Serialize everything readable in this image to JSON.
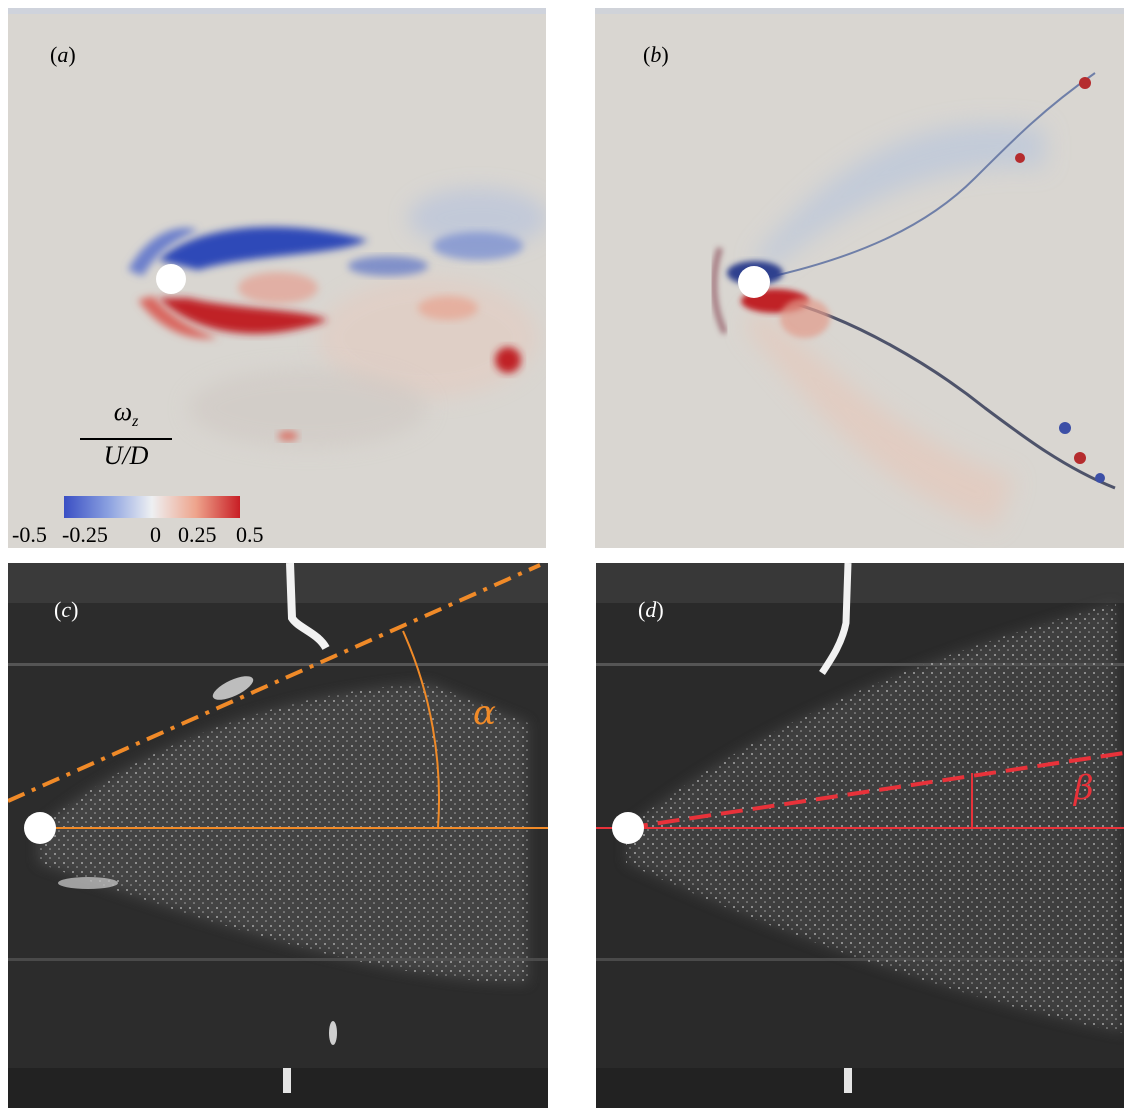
{
  "panels": {
    "a": {
      "label_open": "(",
      "label_letter": "a",
      "label_close": ")"
    },
    "b": {
      "label_open": "(",
      "label_letter": "b",
      "label_close": ")"
    },
    "c": {
      "label_open": "(",
      "label_letter": "c",
      "label_close": ")"
    },
    "d": {
      "label_open": "(",
      "label_letter": "d",
      "label_close": ")"
    }
  },
  "colorbar": {
    "numerator": "ω",
    "numerator_sub": "z",
    "denominator": "U/D",
    "ticks": [
      "-0.5",
      "-0.25",
      "0",
      "0.25",
      "0.5"
    ],
    "min": -0.5,
    "max": 0.5,
    "colors": {
      "negative": "#3a4fc4",
      "zero": "#eef0f2",
      "positive": "#c81e25"
    }
  },
  "angles": {
    "alpha": {
      "symbol": "α",
      "color": "#f08a28"
    },
    "beta": {
      "symbol": "β",
      "color": "#e8323a"
    }
  },
  "colors": {
    "simulation_background": "#d8d5d0",
    "experiment_background": "#2a2a2a"
  }
}
